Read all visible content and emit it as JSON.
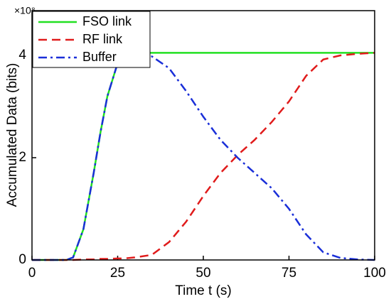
{
  "chart_data": {
    "type": "line",
    "xlabel": "Time t (s)",
    "ylabel": "Accumulated Data (bits)",
    "y_multiplier": "×10⁸",
    "x": [
      0,
      5,
      10,
      12,
      15,
      18,
      20,
      22,
      25,
      27,
      30,
      35,
      40,
      45,
      50,
      55,
      60,
      65,
      70,
      75,
      80,
      85,
      90,
      95,
      100
    ],
    "series": [
      {
        "name": "FSO link",
        "color": "#22e022",
        "dash": "solid",
        "values": [
          0,
          0,
          0,
          0.05,
          0.6,
          1.7,
          2.5,
          3.2,
          3.85,
          4.02,
          4.05,
          4.05,
          4.05,
          4.05,
          4.05,
          4.05,
          4.05,
          4.05,
          4.05,
          4.05,
          4.05,
          4.05,
          4.05,
          4.05,
          4.05
        ]
      },
      {
        "name": "RF link",
        "color": "#e01b1b",
        "dash": "dashed",
        "values": [
          0,
          0,
          0,
          0,
          0.01,
          0.01,
          0.02,
          0.02,
          0.03,
          0.03,
          0.05,
          0.1,
          0.35,
          0.75,
          1.25,
          1.7,
          2.05,
          2.35,
          2.7,
          3.1,
          3.6,
          3.92,
          4.0,
          4.03,
          4.05
        ]
      },
      {
        "name": "Buffer",
        "color": "#1a2fd8",
        "dash": "dashdot",
        "values": [
          0,
          0,
          0,
          0.05,
          0.6,
          1.7,
          2.5,
          3.2,
          3.85,
          4.0,
          4.02,
          3.98,
          3.75,
          3.3,
          2.8,
          2.35,
          2.0,
          1.7,
          1.4,
          1.0,
          0.5,
          0.15,
          0.04,
          0.01,
          0
        ]
      }
    ],
    "xlim": [
      0,
      100
    ],
    "xticks": [
      0,
      25,
      50,
      75,
      100
    ],
    "ylim": [
      0,
      4.875
    ],
    "yticks": [
      0,
      2,
      4
    ],
    "legend": "upper-left"
  }
}
